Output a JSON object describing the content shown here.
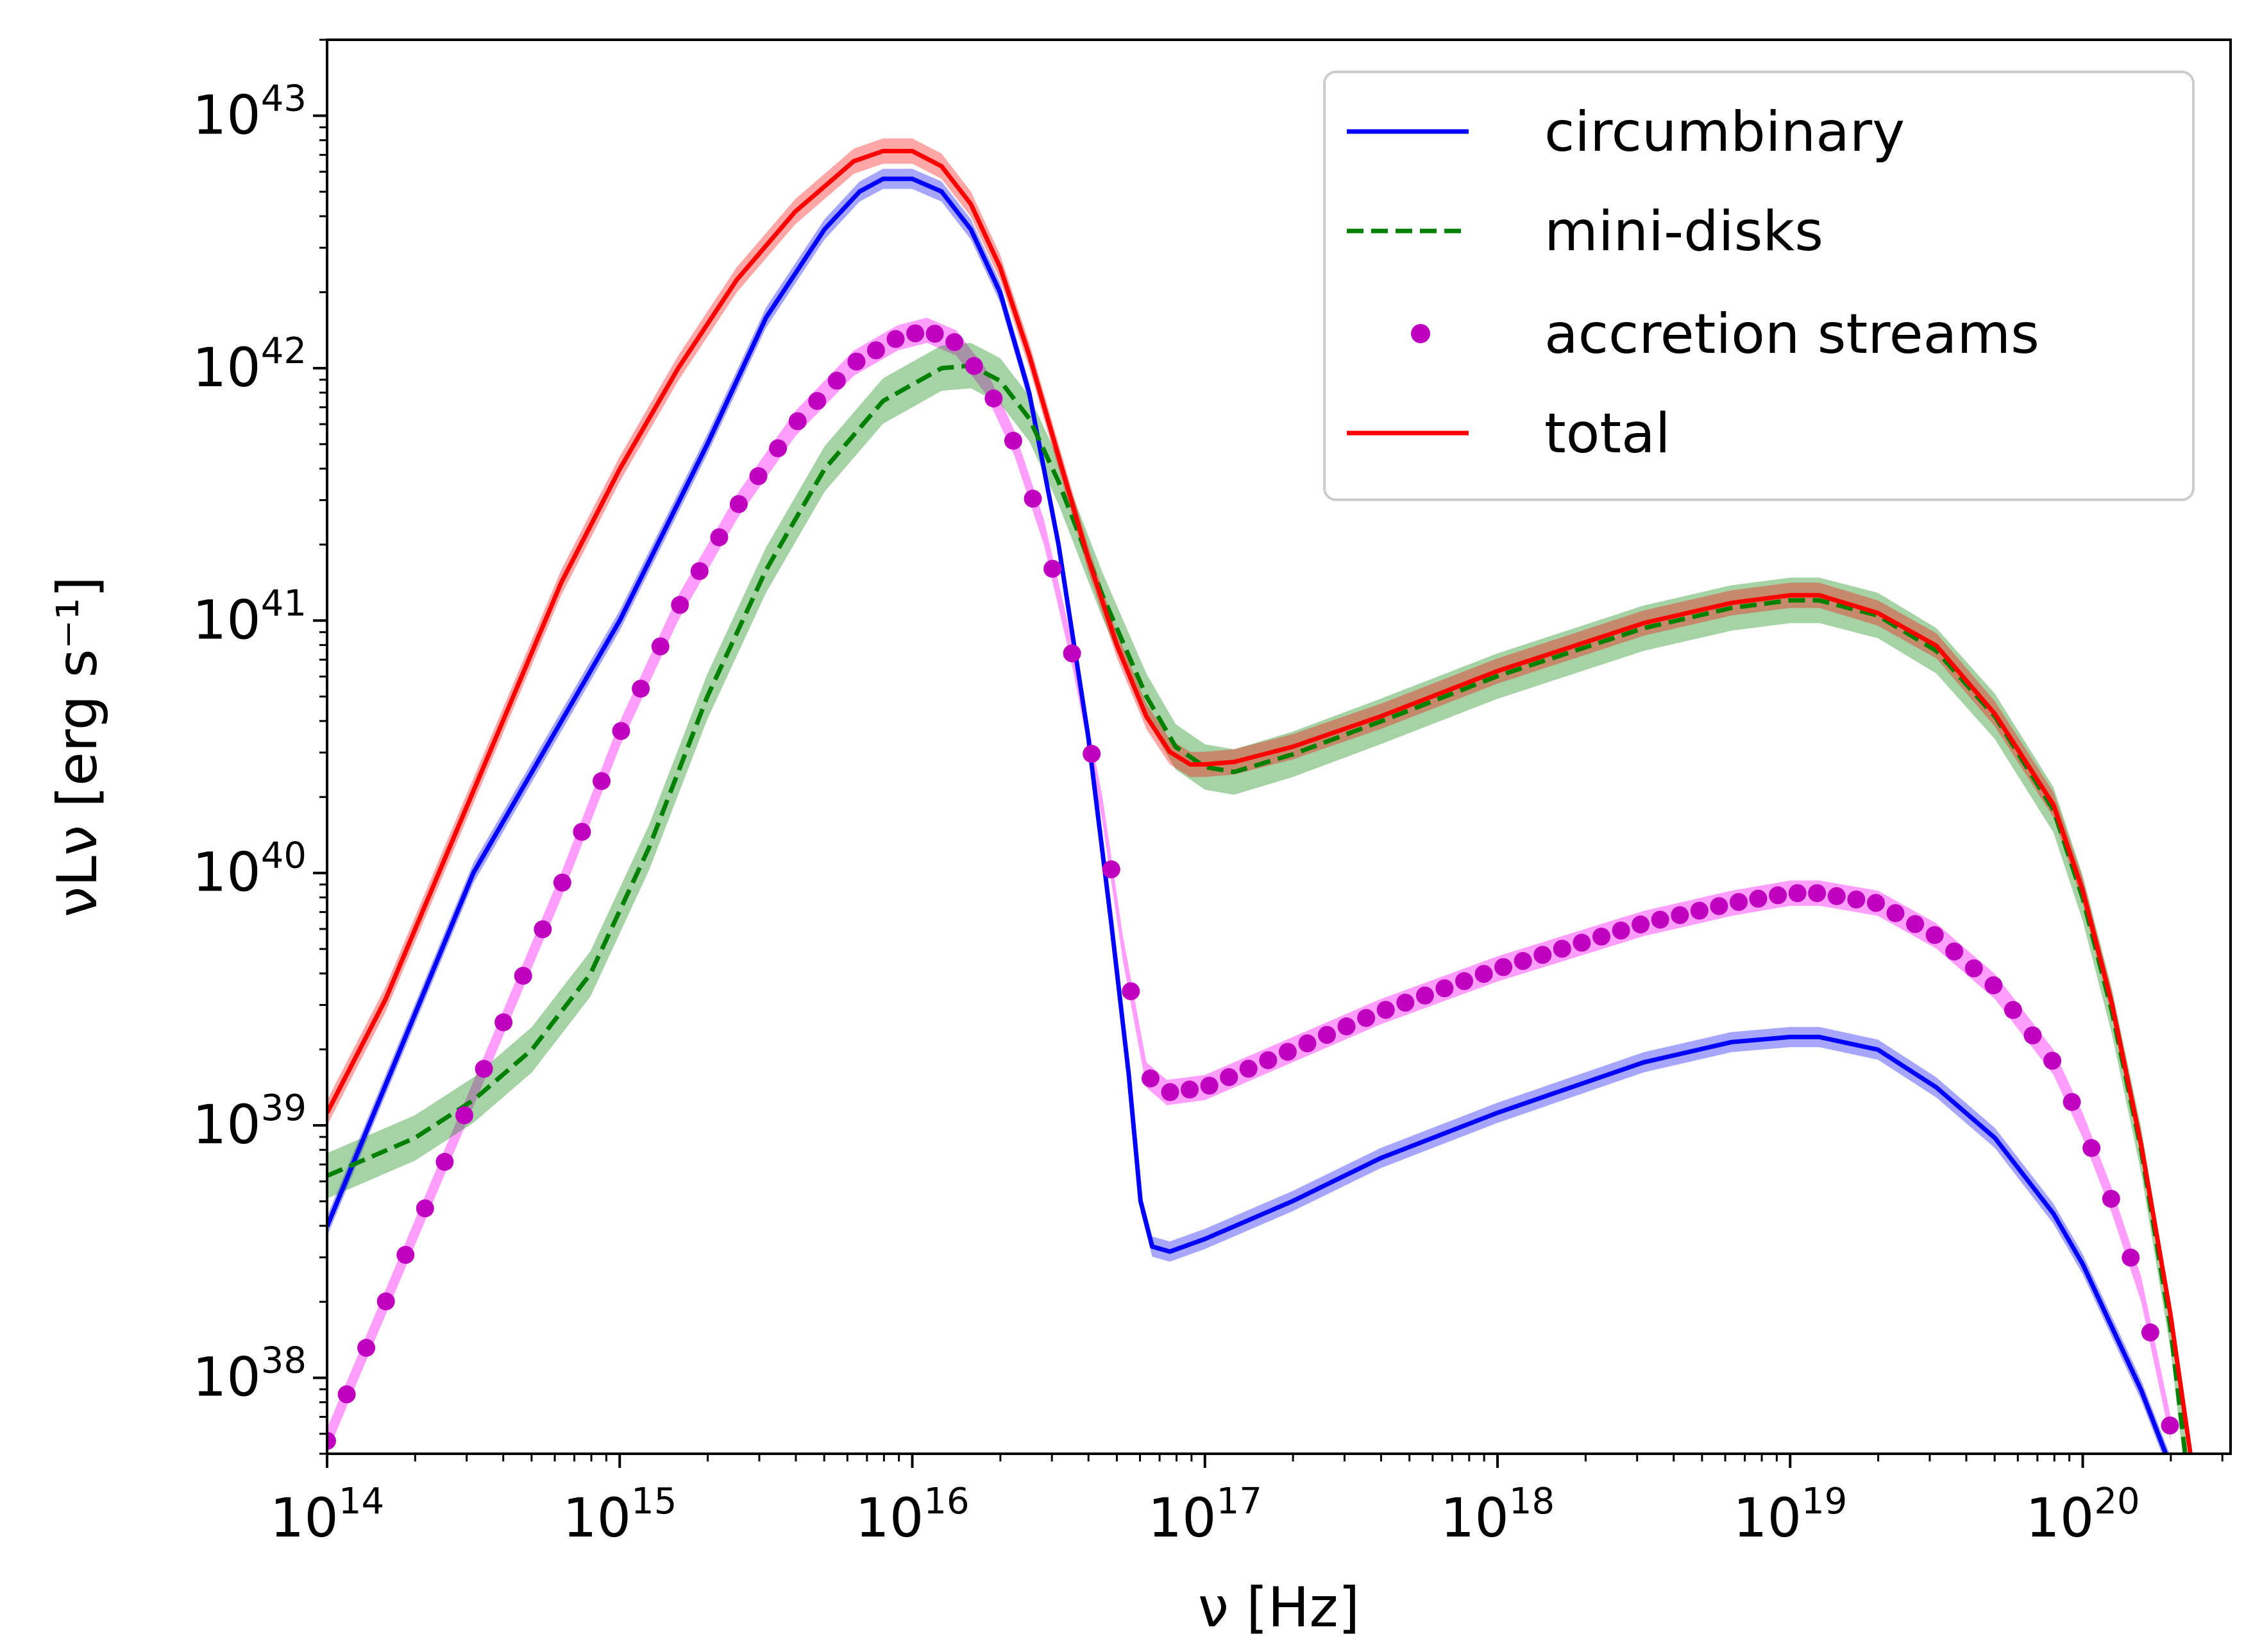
{
  "chart_data": {
    "type": "line",
    "xlabel": "ν [Hz]",
    "ylabel": "νLν [erg s⁻¹]",
    "xscale": "log",
    "yscale": "log",
    "xlim": [
      100000000000000.0,
      3.2e+20
    ],
    "ylim": [
      5e+37,
      2e+43
    ],
    "x_ticks": [
      {
        "base": "10",
        "exp": "14",
        "value": 100000000000000.0
      },
      {
        "base": "10",
        "exp": "15",
        "value": 1000000000000000.0
      },
      {
        "base": "10",
        "exp": "16",
        "value": 1e+16
      },
      {
        "base": "10",
        "exp": "17",
        "value": 1e+17
      },
      {
        "base": "10",
        "exp": "18",
        "value": 1e+18
      },
      {
        "base": "10",
        "exp": "19",
        "value": 1e+19
      },
      {
        "base": "10",
        "exp": "20",
        "value": 1e+20
      }
    ],
    "y_ticks": [
      {
        "base": "10",
        "exp": "38",
        "value": 1e+38
      },
      {
        "base": "10",
        "exp": "39",
        "value": 1e+39
      },
      {
        "base": "10",
        "exp": "40",
        "value": 1e+40
      },
      {
        "base": "10",
        "exp": "41",
        "value": 1e+41
      },
      {
        "base": "10",
        "exp": "42",
        "value": 1e+42
      },
      {
        "base": "10",
        "exp": "43",
        "value": 1e+43
      }
    ],
    "legend_position": "upper-right",
    "series": [
      {
        "name": "circumbinary",
        "style": "solid",
        "color": "#0000ff",
        "band_color": "#0000ff",
        "log_x": [
          14.0,
          14.5,
          15.0,
          15.3,
          15.5,
          15.7,
          15.82,
          15.9,
          16.0,
          16.1,
          16.2,
          16.3,
          16.4,
          16.5,
          16.6,
          16.68,
          16.74,
          16.78,
          16.82,
          16.88,
          17.0,
          17.3,
          17.6,
          18.0,
          18.5,
          18.8,
          19.0,
          19.1,
          19.3,
          19.5,
          19.7,
          19.9,
          20.0,
          20.1,
          20.2,
          20.35
        ],
        "log_y": [
          38.6,
          40.0,
          41.0,
          41.7,
          42.2,
          42.55,
          42.7,
          42.75,
          42.75,
          42.7,
          42.55,
          42.3,
          41.9,
          41.3,
          40.55,
          39.8,
          39.2,
          38.7,
          38.52,
          38.5,
          38.55,
          38.7,
          38.87,
          39.05,
          39.25,
          39.33,
          39.35,
          39.35,
          39.3,
          39.15,
          38.95,
          38.65,
          38.45,
          38.2,
          37.95,
          37.5
        ],
        "band_half_width": 0.04
      },
      {
        "name": "mini-disks",
        "style": "dashed",
        "color": "#008000",
        "band_color": "#008000",
        "log_x": [
          14.0,
          14.3,
          14.5,
          14.7,
          14.9,
          15.1,
          15.3,
          15.5,
          15.7,
          15.9,
          16.1,
          16.2,
          16.3,
          16.4,
          16.5,
          16.65,
          16.8,
          16.9,
          17.0,
          17.1,
          17.3,
          17.6,
          18.0,
          18.5,
          18.8,
          19.0,
          19.1,
          19.3,
          19.5,
          19.7,
          19.9,
          20.0,
          20.1,
          20.2,
          20.3,
          20.35
        ],
        "log_y": [
          38.8,
          38.95,
          39.1,
          39.3,
          39.6,
          40.1,
          40.7,
          41.2,
          41.6,
          41.87,
          42.0,
          42.01,
          41.95,
          41.8,
          41.55,
          41.1,
          40.7,
          40.5,
          40.42,
          40.4,
          40.47,
          40.6,
          40.78,
          40.97,
          41.05,
          41.08,
          41.08,
          41.02,
          40.88,
          40.62,
          40.25,
          39.9,
          39.45,
          38.9,
          38.2,
          37.7
        ],
        "band_half_width": 0.09
      },
      {
        "name": "accretion streams",
        "style": "dotted",
        "color": "#bf00bf",
        "band_color": "#ff00ff",
        "log_x": [
          14.0,
          14.2,
          14.4,
          14.6,
          14.8,
          15.0,
          15.2,
          15.4,
          15.6,
          15.8,
          15.95,
          16.05,
          16.15,
          16.25,
          16.35,
          16.45,
          16.55,
          16.65,
          16.72,
          16.8,
          16.87,
          17.0,
          17.3,
          17.6,
          18.0,
          18.5,
          18.8,
          19.0,
          19.1,
          19.3,
          19.5,
          19.7,
          19.9,
          20.0,
          20.1,
          20.2,
          20.3
        ],
        "log_y": [
          37.75,
          38.3,
          38.85,
          39.4,
          39.95,
          40.55,
          41.05,
          41.45,
          41.78,
          42.02,
          42.12,
          42.15,
          42.1,
          41.95,
          41.7,
          41.35,
          40.85,
          40.25,
          39.7,
          39.2,
          39.13,
          39.15,
          39.3,
          39.45,
          39.62,
          39.8,
          39.88,
          39.92,
          39.92,
          39.88,
          39.75,
          39.55,
          39.25,
          39.0,
          38.7,
          38.35,
          37.8
        ],
        "band_half_width": 0.05
      },
      {
        "name": "total",
        "style": "solid",
        "color": "#ff0000",
        "band_color": "#ff0000",
        "log_x": [
          14.0,
          14.2,
          14.4,
          14.6,
          14.8,
          15.0,
          15.2,
          15.4,
          15.6,
          15.8,
          15.9,
          16.0,
          16.1,
          16.2,
          16.3,
          16.4,
          16.5,
          16.6,
          16.7,
          16.8,
          16.88,
          16.95,
          17.0,
          17.1,
          17.3,
          17.6,
          18.0,
          18.5,
          18.8,
          19.0,
          19.1,
          19.3,
          19.5,
          19.7,
          19.9,
          20.0,
          20.1,
          20.2,
          20.3,
          20.38
        ],
        "log_y": [
          39.05,
          39.5,
          40.05,
          40.6,
          41.15,
          41.6,
          42.0,
          42.35,
          42.62,
          42.82,
          42.86,
          42.86,
          42.8,
          42.65,
          42.4,
          42.05,
          41.65,
          41.25,
          40.9,
          40.62,
          40.48,
          40.43,
          40.43,
          40.44,
          40.5,
          40.62,
          40.8,
          40.99,
          41.07,
          41.1,
          41.1,
          41.03,
          40.9,
          40.63,
          40.27,
          39.93,
          39.48,
          38.92,
          38.25,
          37.6
        ],
        "band_half_width": 0.05
      }
    ]
  }
}
